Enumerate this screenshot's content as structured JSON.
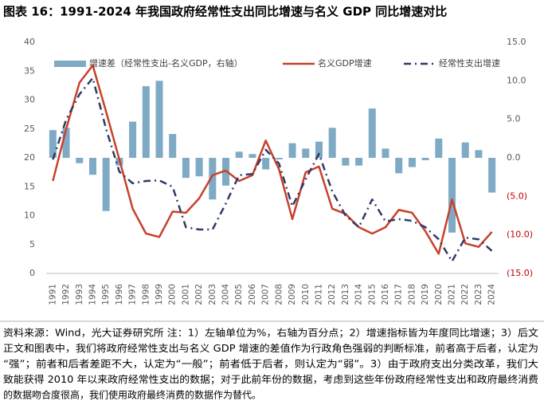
{
  "chart_data": {
    "type": "bar_line",
    "title": "图表 16：1991-2024 年我国政府经常性支出同比增速与名义 GDP 同比增速对比",
    "categories": [
      "1991",
      "1992",
      "1993",
      "1994",
      "1995",
      "1996",
      "1997",
      "1998",
      "1999",
      "2000",
      "2001",
      "2002",
      "2003",
      "2004",
      "2005",
      "2006",
      "2007",
      "2008",
      "2009",
      "2010",
      "2011",
      "2012",
      "2013",
      "2014",
      "2015",
      "2016",
      "2017",
      "2018",
      "2019",
      "2020",
      "2021",
      "2022",
      "2023",
      "2024"
    ],
    "series": [
      {
        "name": "增速差（经常性支出-名义GDP，右轴）",
        "color": "#7eaac6",
        "kind": "bar",
        "axis": "y2",
        "values": [
          3.6,
          3.9,
          -0.7,
          -2.2,
          -6.9,
          -1.0,
          4.7,
          9.3,
          10.0,
          3.1,
          -2.6,
          -2.4,
          -5.4,
          -3.6,
          0.8,
          0.5,
          -1.5,
          -0.2,
          1.9,
          1.2,
          2.1,
          3.9,
          -1.0,
          -1.0,
          6.4,
          1.2,
          -2.0,
          -1.2,
          -0.3,
          2.5,
          -9.7,
          2.0,
          1.0,
          -4.5
        ]
      },
      {
        "name": "名义GDP增速",
        "color": "#c8402a",
        "kind": "line",
        "values": [
          16,
          25,
          33,
          36,
          28,
          19.7,
          11.2,
          6.9,
          6.3,
          10.7,
          10.5,
          13,
          17,
          17.8,
          16,
          17,
          23,
          18,
          9.4,
          17.5,
          18.5,
          11.2,
          10.3,
          8,
          6.9,
          8,
          11,
          10.5,
          7.3,
          3.4,
          12.8,
          5.2,
          4.6,
          7.2
        ]
      },
      {
        "name": "经常性支出增速",
        "color": "#2f3b66",
        "kind": "dashline",
        "values": [
          19.7,
          26.6,
          31,
          33.8,
          25,
          17.6,
          15.6,
          16,
          16.1,
          15,
          8,
          7.6,
          7.6,
          12.1,
          17,
          17.2,
          21.4,
          19,
          11.6,
          16.3,
          20.7,
          14.2,
          10,
          8,
          12.8,
          9,
          9.4,
          9.1,
          8,
          5.9,
          2.1,
          6.2,
          5.9,
          3.9
        ]
      }
    ],
    "ylim": [
      0,
      40
    ],
    "yticks": [
      0,
      5,
      10,
      15,
      20,
      25,
      30,
      35,
      40
    ],
    "y2lim": [
      -15,
      15
    ],
    "y2ticks": [
      {
        "value": 15,
        "label": "15.0"
      },
      {
        "value": 10,
        "label": "10.0"
      },
      {
        "value": 5,
        "label": "5.0"
      },
      {
        "value": 0,
        "label": "0.0"
      },
      {
        "value": -5,
        "label": "(5.0)"
      },
      {
        "value": -10,
        "label": "(10.0)"
      },
      {
        "value": -15,
        "label": "(15.0)"
      }
    ],
    "negative_tick_color": "#c00000",
    "notes": [
      "资料来源：Wind，光大证券研究所  注：1）左轴单位为%，右轴为百分点；2）增速指标皆为年度同比增速；3）后文",
      "正文和图表中，我们将政府经常性支出与名义 GDP 增速的差值作为行政角色强弱的判断标准，前者高于后者，认定为",
      "“强”；前者和后者差距不大，认定为“一般”；前者低于后者，则认定为“弱”。3）由于政府支出分类改革，我们大",
      "致能获得 2010 年以来政府经常性支出的数据；对于此前年份的数据，考虑到这些年份政府经常性支出和政府最终消费",
      "的数据吻合度很高，我们使用政府最终消费的数据作为替代。"
    ]
  }
}
